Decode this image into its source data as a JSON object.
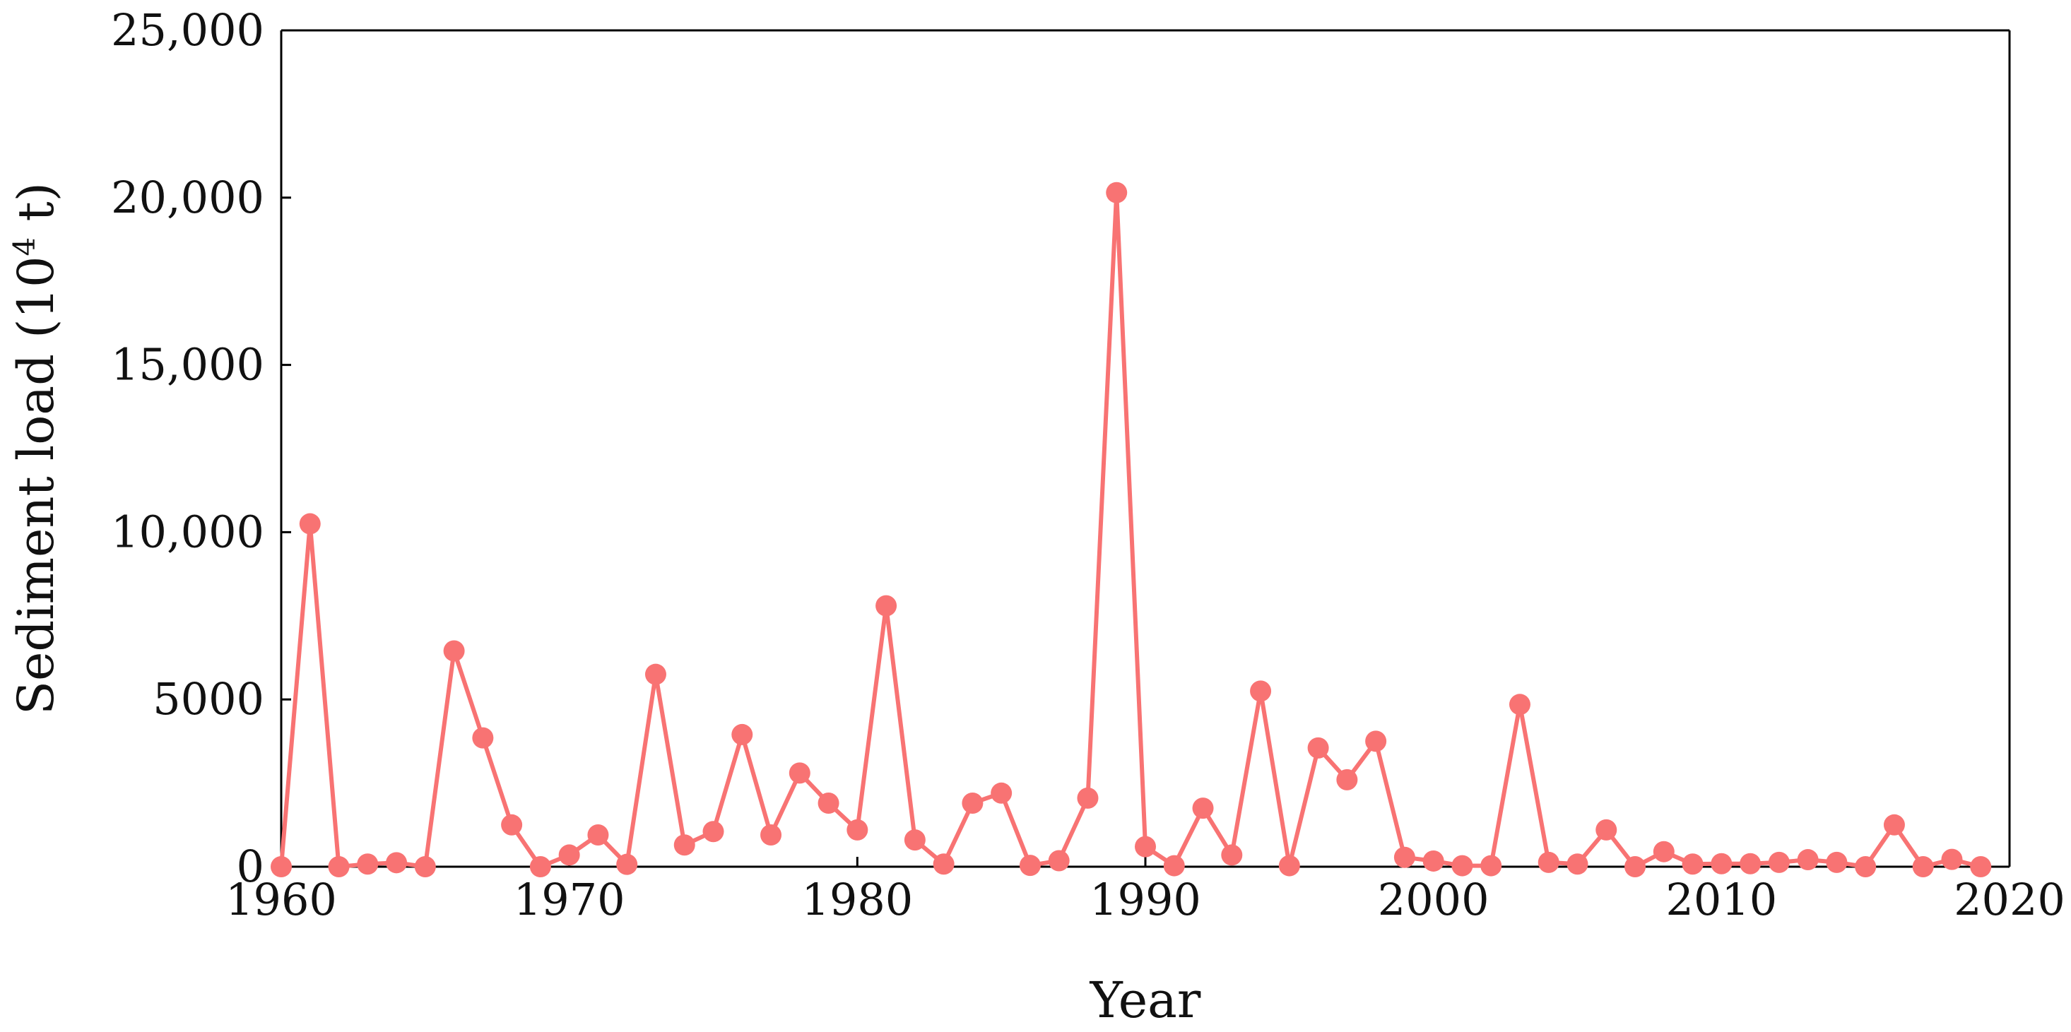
{
  "chart_data": {
    "type": "line",
    "xlabel": "Year",
    "ylabel": "Sediment load (10",
    "ylabel_sup": "4",
    "ylabel_suffix": " t)",
    "xlim": [
      1960,
      2020
    ],
    "ylim": [
      0,
      25000
    ],
    "xticks": [
      1960,
      1970,
      1980,
      1990,
      2000,
      2010,
      2020
    ],
    "xtick_labels": [
      "1960",
      "1970",
      "1980",
      "1990",
      "2000",
      "2010",
      "2020"
    ],
    "yticks": [
      0,
      5000,
      10000,
      15000,
      20000,
      25000
    ],
    "ytick_labels": [
      "0",
      "5000",
      "10,000",
      "15,000",
      "20,000",
      "25,000"
    ],
    "grid": false,
    "legend": false,
    "series": [
      {
        "color": "#f87373",
        "marker": "circle",
        "x": [
          1960,
          1961,
          1962,
          1963,
          1964,
          1965,
          1966,
          1967,
          1968,
          1969,
          1970,
          1971,
          1972,
          1973,
          1974,
          1975,
          1976,
          1977,
          1978,
          1979,
          1980,
          1981,
          1982,
          1983,
          1984,
          1985,
          1986,
          1987,
          1988,
          1989,
          1990,
          1991,
          1992,
          1993,
          1994,
          1995,
          1996,
          1997,
          1998,
          1999,
          2000,
          2001,
          2002,
          2003,
          2004,
          2005,
          2006,
          2007,
          2008,
          2009,
          2010,
          2011,
          2012,
          2013,
          2014,
          2015,
          2016,
          2017,
          2018,
          2019
        ],
        "y": [
          0,
          10250,
          0,
          80,
          120,
          0,
          6450,
          3850,
          1250,
          0,
          350,
          950,
          70,
          5750,
          650,
          1050,
          3950,
          950,
          2800,
          1900,
          1100,
          7800,
          800,
          80,
          1900,
          2200,
          40,
          180,
          2050,
          20150,
          600,
          30,
          1750,
          350,
          5250,
          30,
          3550,
          2600,
          3750,
          280,
          170,
          30,
          30,
          4850,
          130,
          80,
          1100,
          0,
          450,
          80,
          90,
          90,
          130,
          210,
          130,
          0,
          1250,
          0,
          220,
          0
        ]
      }
    ]
  }
}
